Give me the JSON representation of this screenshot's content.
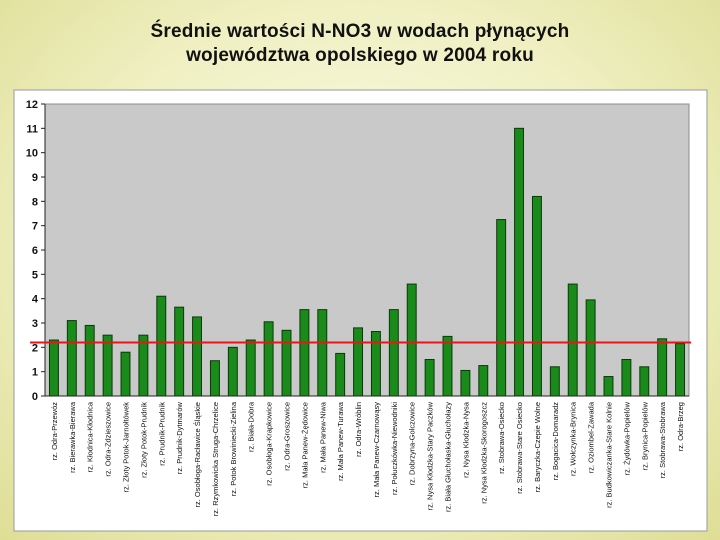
{
  "title": {
    "line1": "Średnie wartości N-NO3 w wodach płynących",
    "line2": "województwa opolskiego w 2004 roku"
  },
  "chart_data": {
    "type": "bar",
    "ylim": [
      0,
      12
    ],
    "yticks": [
      0,
      1,
      2,
      3,
      4,
      5,
      6,
      7,
      8,
      9,
      10,
      11,
      12
    ],
    "grid": false,
    "reference_line": 2.2,
    "categories": [
      "rz. Odra-Przewóz",
      "rz. Bierawka-Bierawa",
      "rz. Kłodnica-Kłodnica",
      "rz. Odra-Zdzieszowice",
      "rz. Złoty Potok-Jarnołtówek",
      "rz. Złoty Potok-Prudnik",
      "rz. Prudnik-Prudnik",
      "rz. Prudnik-Dytmarów",
      "rz. Osobłoga-Racławice Śląskie",
      "rz. Rzymkowicka Struga-Chrzelice",
      "rz. Potok Browiniecki-Zielina",
      "rz. Biała-Dobra",
      "rz. Osobłoga-Krapkowice",
      "rz. Odra-Groszowice",
      "rz. Mała Panew-Żędowice",
      "rz. Mała Panew-Niwa",
      "rz. Mała Panew-Turawa",
      "rz. Odra-Wróblin",
      "rz. Mała Panew-Czarnowąsy",
      "rz. Połuczkówka-Niewodniki",
      "rz. Dobrzyna-Golczowice",
      "rz. Nysa Kłodzka-Stary Paczków",
      "rz. Biała Głuchołaska-Głuchołazy",
      "rz. Nysa Kłodzka-Nysa",
      "rz. Nysa Kłodzka-Skorogoszcz",
      "rz. Stobrawa-Osiecko",
      "rz. Stobrawa-Stare Osiecko",
      "rz. Baryczka-Czepie Wolne",
      "rz. Bogacica-Domaradz",
      "rz. Wołczynka-Brynica",
      "rz. Oziombel-Zawada",
      "rz. Budkowiczanka-Stare Kolnie",
      "rz. Żydówka-Popielów",
      "rz. Brynica-Popielów",
      "rz. Stobrawa-Stobrawa",
      "rz. Odra-Brzeg"
    ],
    "values": [
      2.3,
      3.1,
      2.9,
      2.5,
      1.8,
      2.5,
      4.1,
      3.65,
      3.25,
      1.45,
      2.0,
      2.3,
      3.05,
      2.7,
      3.55,
      3.55,
      1.75,
      2.8,
      2.65,
      3.55,
      4.6,
      1.5,
      2.45,
      1.05,
      1.25,
      7.25,
      11.0,
      8.2,
      1.2,
      4.6,
      3.95,
      0.8,
      1.5,
      1.2,
      2.35,
      2.15
    ],
    "colors": {
      "bar_fill": "#1a8a1a",
      "bar_stroke": "#0a3a0a",
      "plot_bg": "#c9c9c9",
      "reference_line": "#e8151b"
    }
  }
}
